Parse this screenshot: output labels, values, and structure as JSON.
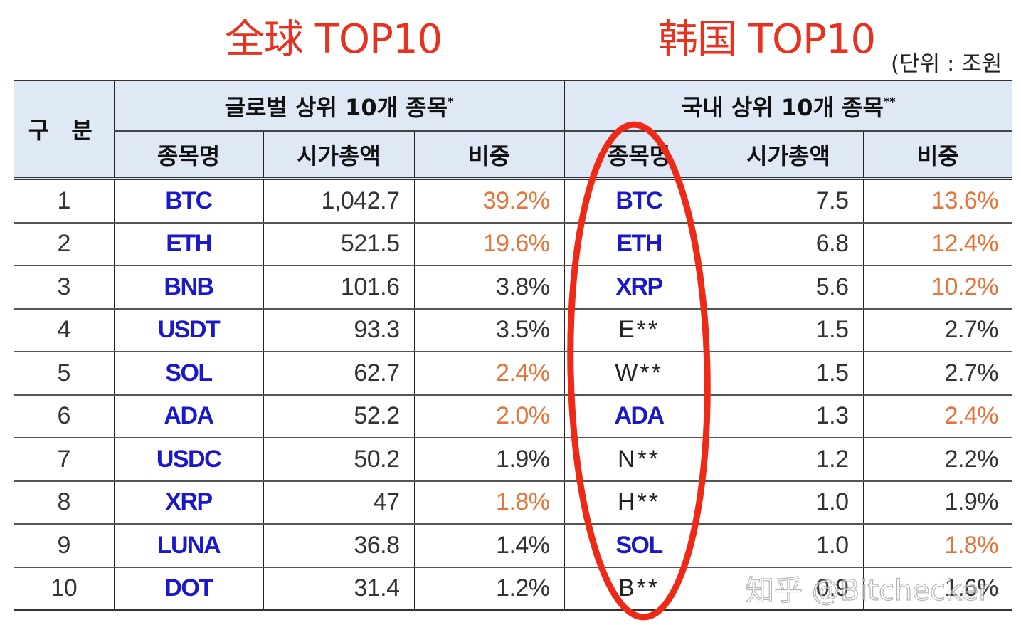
{
  "titles": {
    "global": "全球 TOP10",
    "korea": "韩国 TOP10",
    "title_color": "#e8311f"
  },
  "unit_note": "(단위 : 조원",
  "table": {
    "header": {
      "category": "구 분",
      "global_group": "글로벌 상위 10개 종목",
      "global_group_mark": "*",
      "domestic_group": "국내 상위 10개 종목",
      "domestic_group_mark": "**",
      "columns": {
        "name": "종목명",
        "market_cap": "시가총액",
        "share": "비중"
      }
    },
    "rows": [
      {
        "rank": "1",
        "global": {
          "name": "BTC",
          "cap": "1,042.7",
          "share": "39.2%",
          "share_hl": true
        },
        "domestic": {
          "name": "BTC",
          "masked": false,
          "cap": "7.5",
          "share": "13.6%",
          "share_hl": true
        }
      },
      {
        "rank": "2",
        "global": {
          "name": "ETH",
          "cap": "521.5",
          "share": "19.6%",
          "share_hl": true
        },
        "domestic": {
          "name": "ETH",
          "masked": false,
          "cap": "6.8",
          "share": "12.4%",
          "share_hl": true
        }
      },
      {
        "rank": "3",
        "global": {
          "name": "BNB",
          "cap": "101.6",
          "share": "3.8%",
          "share_hl": false
        },
        "domestic": {
          "name": "XRP",
          "masked": false,
          "cap": "5.6",
          "share": "10.2%",
          "share_hl": true
        }
      },
      {
        "rank": "4",
        "global": {
          "name": "USDT",
          "cap": "93.3",
          "share": "3.5%",
          "share_hl": false
        },
        "domestic": {
          "name": "E**",
          "masked": true,
          "cap": "1.5",
          "share": "2.7%",
          "share_hl": false
        }
      },
      {
        "rank": "5",
        "global": {
          "name": "SOL",
          "cap": "62.7",
          "share": "2.4%",
          "share_hl": true
        },
        "domestic": {
          "name": "W**",
          "masked": true,
          "cap": "1.5",
          "share": "2.7%",
          "share_hl": false
        }
      },
      {
        "rank": "6",
        "global": {
          "name": "ADA",
          "cap": "52.2",
          "share": "2.0%",
          "share_hl": true
        },
        "domestic": {
          "name": "ADA",
          "masked": false,
          "cap": "1.3",
          "share": "2.4%",
          "share_hl": true
        }
      },
      {
        "rank": "7",
        "global": {
          "name": "USDC",
          "cap": "50.2",
          "share": "1.9%",
          "share_hl": false
        },
        "domestic": {
          "name": "N**",
          "masked": true,
          "cap": "1.2",
          "share": "2.2%",
          "share_hl": false
        }
      },
      {
        "rank": "8",
        "global": {
          "name": "XRP",
          "cap": "47",
          "share": "1.8%",
          "share_hl": true
        },
        "domestic": {
          "name": "H**",
          "masked": true,
          "cap": "1.0",
          "share": "1.9%",
          "share_hl": false
        }
      },
      {
        "rank": "9",
        "global": {
          "name": "LUNA",
          "cap": "36.8",
          "share": "1.4%",
          "share_hl": false
        },
        "domestic": {
          "name": "SOL",
          "masked": false,
          "cap": "1.0",
          "share": "1.8%",
          "share_hl": true
        }
      },
      {
        "rank": "10",
        "global": {
          "name": "DOT",
          "cap": "31.4",
          "share": "1.2%",
          "share_hl": false
        },
        "domestic": {
          "name": "B**",
          "masked": true,
          "cap": "0.9",
          "share": "1.6%",
          "share_hl": false
        }
      }
    ]
  },
  "annotation": {
    "type": "ellipse",
    "target_column": "domestic.name",
    "color": "#ee2a17"
  },
  "watermark": "知乎 @Bitchecker",
  "colors": {
    "header_bg": "#dfe9f5",
    "coin_name": "#1a18c8",
    "share_highlight": "#e5743a",
    "text": "#333333"
  }
}
